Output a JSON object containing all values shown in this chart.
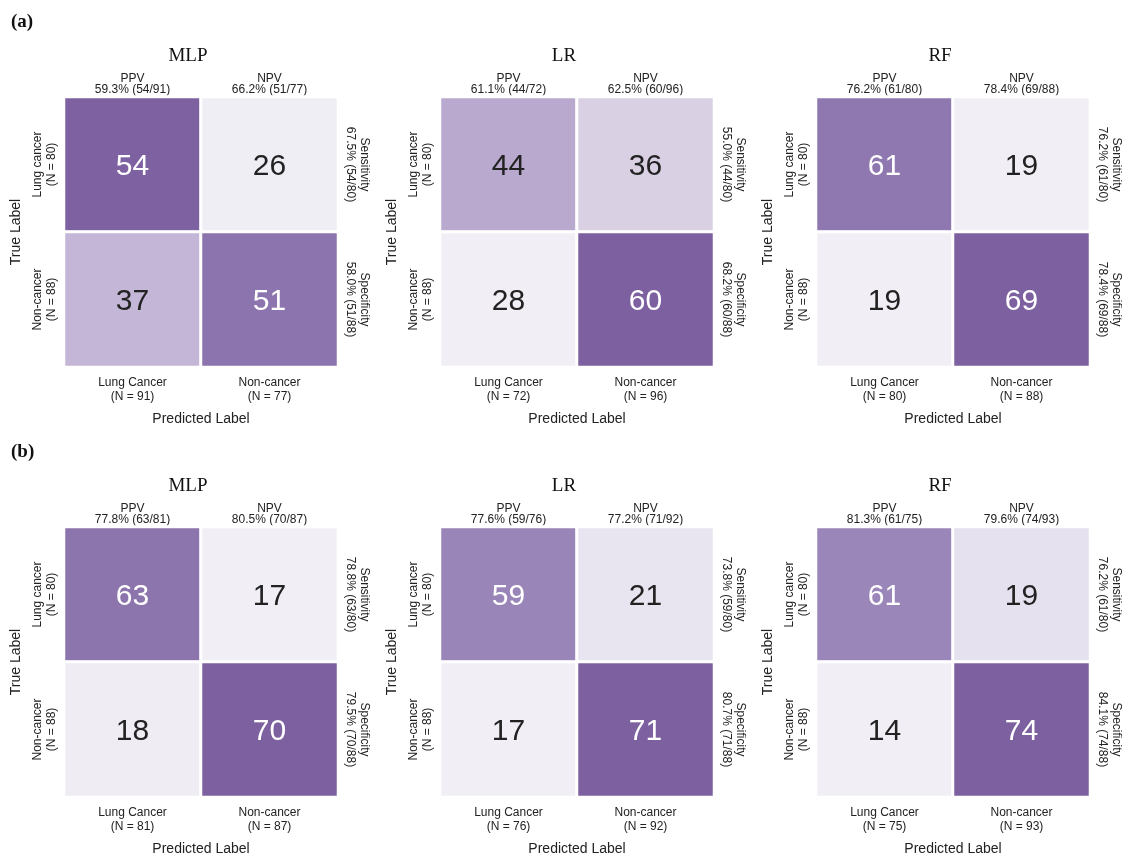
{
  "chart_data": [
    {
      "type": "heatmap",
      "title": "MLP",
      "subtitle": "(a)",
      "xlabel": "Predicted Label",
      "ylabel": "True Label",
      "categories": [
        "Lung Cancer\n(N = 91)",
        "Non-cancer\n(N = 77)"
      ],
      "y_categories": [
        "Lung cancer\n(N = 80)",
        "Non-cancer\n(N = 88)"
      ],
      "y2_categories": [
        "Sensitivity\n67.5% (54/80)",
        "Specificity\n58.0% (51/88)"
      ],
      "annotations": [
        "PPV\n59.3% (54/91)",
        "NPV\n66.2% (51/77)"
      ],
      "cells": [
        [
          54,
          26
        ],
        [
          37,
          51
        ]
      ],
      "colors": [
        "#7d61a0",
        "#f0eef5",
        "#c4b6d6",
        "#8c74ae"
      ],
      "data_labels": true
    },
    {
      "type": "heatmap",
      "title": "LR",
      "xlabel": "Predicted Label",
      "ylabel": "True Label",
      "categories": [
        "Lung Cancer\n(N = 72)",
        "Non-cancer\n(N = 96)"
      ],
      "y_categories": [
        "Lung cancer\n(N = 80)",
        "Non-cancer\n(N = 88)"
      ],
      "y2_categories": [
        "Sensitivity\n55.0% (44/80)",
        "Specificity\n68.2% (60/88)"
      ],
      "annotations": [
        "PPV\n61.1% (44/72)",
        "NPV\n62.5% (60/96)"
      ],
      "cells": [
        [
          44,
          36
        ],
        [
          28,
          60
        ]
      ],
      "colors": [
        "#b9a9cf",
        "#d9d0e4",
        "#f1eff5",
        "#7c60a0"
      ],
      "data_labels": true
    },
    {
      "type": "heatmap",
      "title": "RF",
      "xlabel": "Predicted Label",
      "ylabel": "True Label",
      "categories": [
        "Lung Cancer\n(N = 80)",
        "Non-cancer\n(N = 88)"
      ],
      "y_categories": [
        "Lung cancer\n(N = 80)",
        "Non-cancer\n(N = 88)"
      ],
      "y2_categories": [
        "Sensitivity\n76.2% (61/80)",
        "Specificity\n78.4% (69/88)"
      ],
      "annotations": [
        "PPV\n76.2% (61/80)",
        "NPV\n78.4% (69/88)"
      ],
      "cells": [
        [
          61,
          19
        ],
        [
          19,
          69
        ]
      ],
      "colors": [
        "#8e78af",
        "#f1eff5",
        "#f1eff5",
        "#7c60a0"
      ],
      "data_labels": true
    },
    {
      "type": "heatmap",
      "title": "MLP",
      "subtitle": "(b)",
      "xlabel": "Predicted Label",
      "ylabel": "True Label",
      "categories": [
        "Lung Cancer\n(N = 81)",
        "Non-cancer\n(N = 87)"
      ],
      "y_categories": [
        "Lung cancer\n(N = 80)",
        "Non-cancer\n(N = 88)"
      ],
      "y2_categories": [
        "Sensitivity\n78.8% (63/80)",
        "Specificity\n79.5% (70/88)"
      ],
      "annotations": [
        "PPV\n77.8% (63/81)",
        "NPV\n80.5% (70/87)"
      ],
      "cells": [
        [
          63,
          17
        ],
        [
          18,
          70
        ]
      ],
      "colors": [
        "#8c74ad",
        "#f1eff5",
        "#efecf4",
        "#7c60a0"
      ],
      "data_labels": true
    },
    {
      "type": "heatmap",
      "title": "LR",
      "xlabel": "Predicted Label",
      "ylabel": "True Label",
      "categories": [
        "Lung Cancer\n(N = 76)",
        "Non-cancer\n(N = 92)"
      ],
      "y_categories": [
        "Lung cancer\n(N = 80)",
        "Non-cancer\n(N = 88)"
      ],
      "y2_categories": [
        "Sensitivity\n73.8% (59/80)",
        "Specificity\n80.7% (71/88)"
      ],
      "annotations": [
        "PPV\n77.6% (59/76)",
        "NPV\n77.2% (71/92)"
      ],
      "cells": [
        [
          59,
          21
        ],
        [
          17,
          71
        ]
      ],
      "colors": [
        "#9a85b8",
        "#e9e5f0",
        "#f1eff5",
        "#7c60a0"
      ],
      "data_labels": true
    },
    {
      "type": "heatmap",
      "title": "RF",
      "xlabel": "Predicted Label",
      "ylabel": "True Label",
      "categories": [
        "Lung Cancer\n(N = 75)",
        "Non-cancer\n(N = 93)"
      ],
      "y_categories": [
        "Lung cancer\n(N = 80)",
        "Non-cancer\n(N = 88)"
      ],
      "y2_categories": [
        "Sensitivity\n76.2% (61/80)",
        "Specificity\n84.1% (74/88)"
      ],
      "annotations": [
        "PPV\n81.3% (61/75)",
        "NPV\n79.6% (74/93)"
      ],
      "cells": [
        [
          61,
          19
        ],
        [
          14,
          74
        ]
      ],
      "colors": [
        "#9a86b8",
        "#e6e1ee",
        "#f1eff5",
        "#7c60a0"
      ],
      "data_labels": true
    }
  ]
}
